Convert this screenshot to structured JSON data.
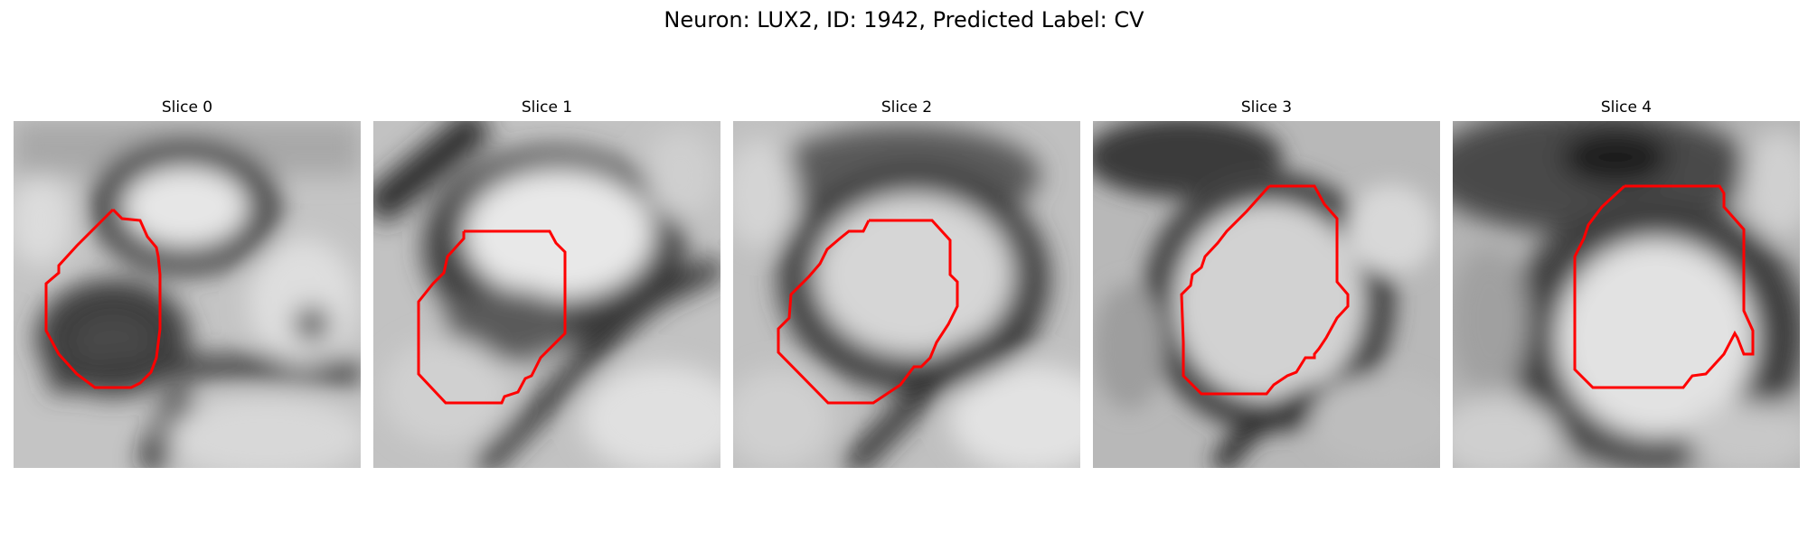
{
  "figure": {
    "title": "Neuron: LUX2, ID: 1942, Predicted Label: CV"
  },
  "panels": [
    {
      "title": "Slice 0"
    },
    {
      "title": "Slice 1"
    },
    {
      "title": "Slice 2"
    },
    {
      "title": "Slice 3"
    },
    {
      "title": "Slice 4"
    }
  ],
  "colors": {
    "contour": "#ff0000",
    "background": "#ffffff"
  }
}
